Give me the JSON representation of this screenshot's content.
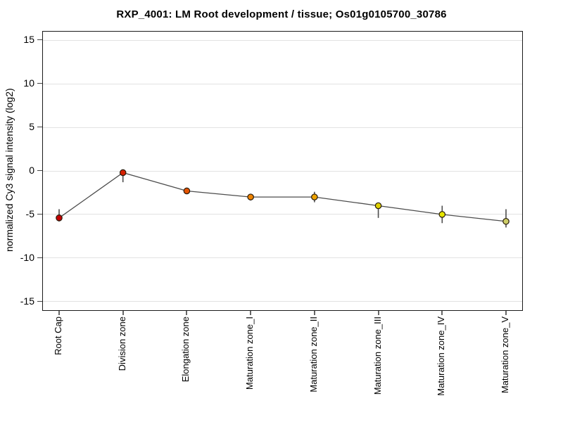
{
  "title": "RXP_4001: LM Root development / tissue; Os01g0105700_30786",
  "chart_data": {
    "type": "line",
    "title": "RXP_4001: LM Root development / tissue; Os01g0105700_30786",
    "xlabel": "",
    "ylabel": "normalized Cy3 signal intensity (log2)",
    "ylim": [
      -16,
      16
    ],
    "yticks": [
      15,
      10,
      5,
      0,
      -5,
      -10,
      -15
    ],
    "grid": "horizontal",
    "legend": "none",
    "categories": [
      "Root Cap",
      "Division zone",
      "Elongation zone",
      "Maturation zone_I",
      "Maturation zone_II",
      "Maturation zone_III",
      "Maturation zone_IV",
      "Maturation zone_V"
    ],
    "series": [
      {
        "name": "normalized Cy3 signal intensity",
        "values": [
          -5.4,
          -0.2,
          -2.3,
          -3.0,
          -3.0,
          -4.0,
          -5.0,
          -5.8
        ],
        "error_high": [
          -4.4,
          0.1,
          -2.0,
          -2.7,
          -2.4,
          -3.7,
          -4.0,
          -4.4
        ],
        "error_low": [
          -5.8,
          -1.3,
          -2.6,
          -3.4,
          -3.6,
          -5.4,
          -6.0,
          -6.5
        ],
        "point_colors": [
          "#c40000",
          "#d62000",
          "#e55400",
          "#ee8300",
          "#eda200",
          "#ddd000",
          "#e6e600",
          "#cccc66"
        ]
      }
    ],
    "line_color": "#4d4d4d",
    "error_bar_color": "#4d4d4d",
    "point_outline_color": "#26190a",
    "gridline_color": "#e2e2e2"
  }
}
